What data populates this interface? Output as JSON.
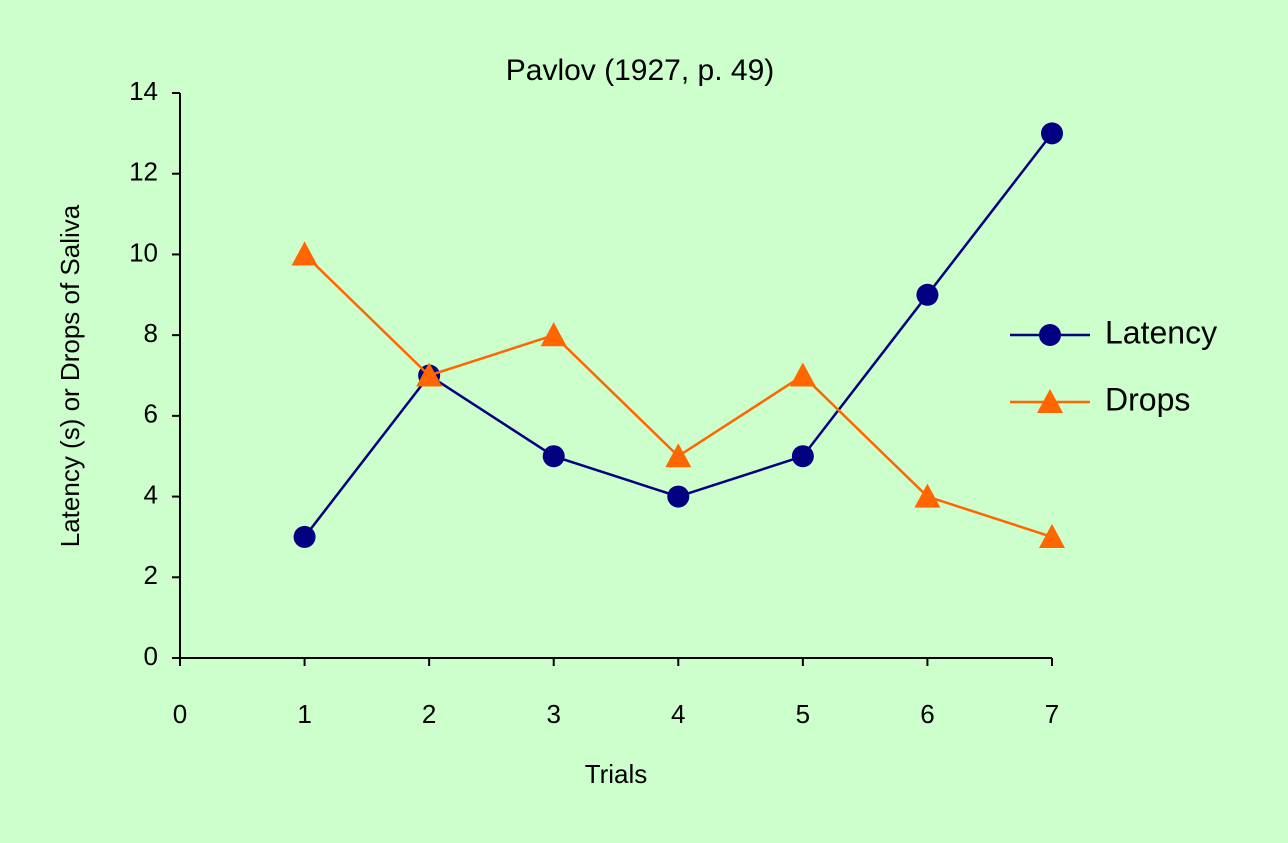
{
  "chart_data": {
    "type": "line",
    "title": "Pavlov (1927, p. 49)",
    "x_label": "Trials",
    "y_label": "Latency (s) or Drops of Saliva",
    "x": [
      1,
      2,
      3,
      4,
      5,
      6,
      7
    ],
    "series": [
      {
        "name": "Latency",
        "color": "#000080",
        "marker": "circle",
        "values": [
          3,
          7,
          5,
          4,
          5,
          9,
          13
        ]
      },
      {
        "name": "Drops",
        "color": "#ff6600",
        "marker": "triangle",
        "values": [
          10,
          7,
          8,
          5,
          7,
          4,
          3
        ]
      }
    ],
    "xlim": [
      0,
      7
    ],
    "xticks": [
      0,
      1,
      2,
      3,
      4,
      5,
      6,
      7
    ],
    "ylim": [
      0,
      14
    ],
    "yticks": [
      0,
      2,
      4,
      6,
      8,
      10,
      12,
      14
    ],
    "grid": false,
    "legend": "right",
    "background": "#ccffcc"
  }
}
